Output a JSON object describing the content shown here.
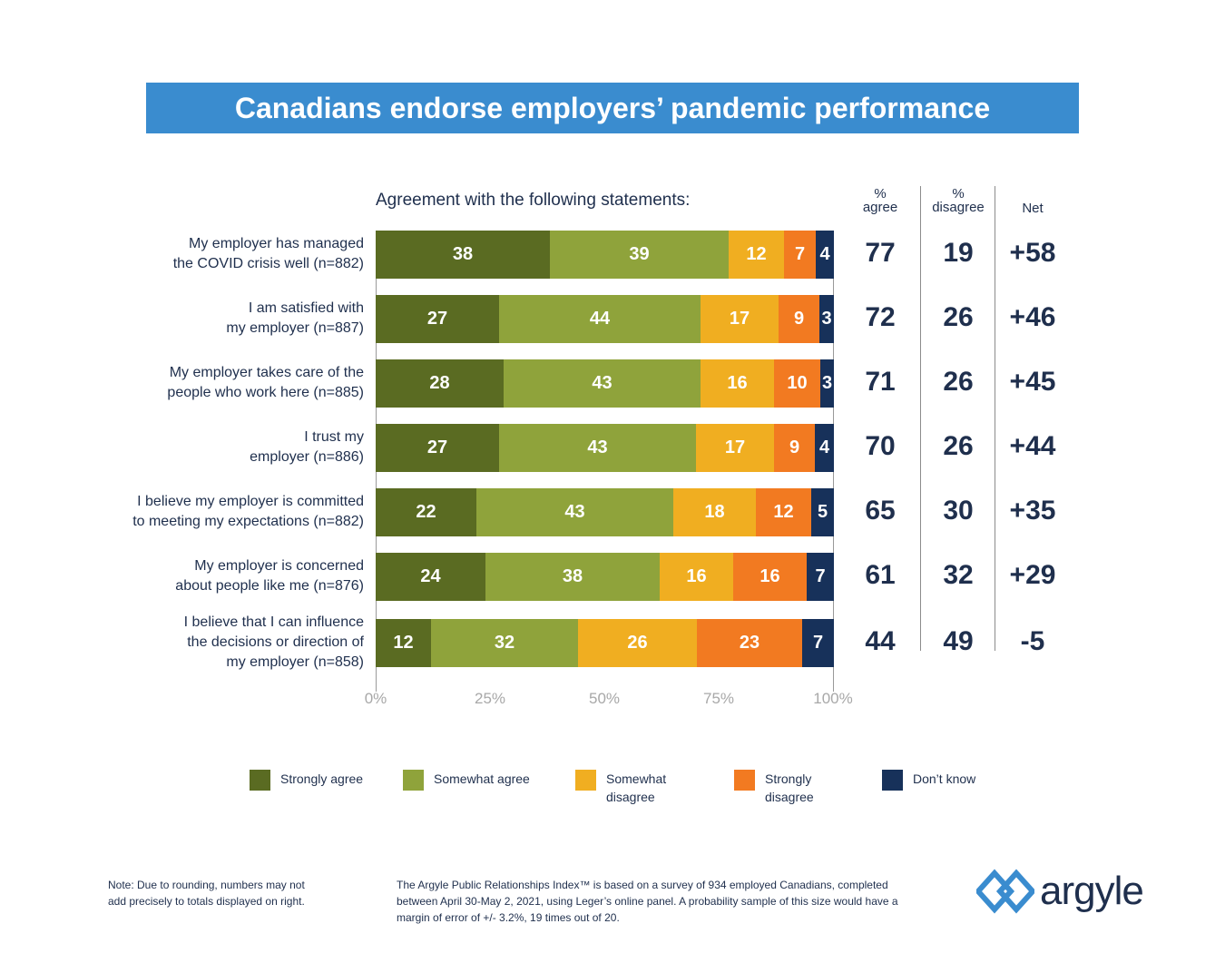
{
  "title": "Canadians endorse employers’ pandemic performance",
  "chart_data": {
    "type": "bar",
    "orientation": "horizontal-stacked",
    "subtitle": "Agreement with the following statements:",
    "categories": [
      "My employer has managed the COVID crisis well (n=882)",
      "I am satisfied with my employer (n=887)",
      "My employer takes care of the people who work here (n=885)",
      "I trust my employer (n=886)",
      "I believe my employer is committed to meeting my expectations (n=882)",
      "My employer is concerned about people like me (n=876)",
      "I believe that I can influence the decisions or direction of my employer (n=858)"
    ],
    "category_lines": [
      [
        "My employer has managed",
        "the COVID crisis well (n=882)"
      ],
      [
        "I am satisfied with",
        "my employer (n=887)"
      ],
      [
        "My employer takes care of the",
        "people who work here (n=885)"
      ],
      [
        "I trust my",
        "employer (n=886)"
      ],
      [
        "I believe my employer is committed",
        "to meeting my expectations (n=882)"
      ],
      [
        "My employer is concerned",
        "about people like me (n=876)"
      ],
      [
        "I believe that I can influence",
        "the decisions or direction of",
        "my employer (n=858)"
      ]
    ],
    "series": [
      {
        "name": "Strongly agree",
        "color": "#5a6b22",
        "values": [
          38,
          27,
          28,
          27,
          22,
          24,
          12
        ]
      },
      {
        "name": "Somewhat agree",
        "color": "#8fa33b",
        "values": [
          39,
          44,
          43,
          43,
          43,
          38,
          32
        ]
      },
      {
        "name": "Somewhat disagree",
        "color": "#f0ae21",
        "values": [
          12,
          17,
          16,
          17,
          18,
          16,
          26
        ]
      },
      {
        "name": "Strongly disagree",
        "color": "#f27a21",
        "values": [
          7,
          9,
          10,
          9,
          12,
          16,
          23
        ]
      },
      {
        "name": "Don’t know",
        "color": "#17315a",
        "values": [
          4,
          3,
          3,
          4,
          5,
          7,
          7
        ]
      }
    ],
    "legend_labels": [
      "Strongly agree",
      "Somewhat agree",
      "Somewhat\ndisagree",
      "Strongly\ndisagree",
      "Don’t know"
    ],
    "xlim": [
      0,
      100
    ],
    "xticks": [
      "0%",
      "25%",
      "50%",
      "75%",
      "100%"
    ],
    "summary_columns": {
      "headers": {
        "agree": [
          "%",
          "agree"
        ],
        "disagree": [
          "%",
          "disagree"
        ],
        "net": "Net"
      },
      "agree": [
        77,
        72,
        71,
        70,
        65,
        61,
        44
      ],
      "disagree": [
        19,
        26,
        26,
        26,
        30,
        32,
        49
      ],
      "net": [
        "+58",
        "+46",
        "+45",
        "+44",
        "+35",
        "+29",
        "-5"
      ]
    },
    "legend_position": "bottom",
    "grid": false
  },
  "notes": {
    "rounding": "Note: Due to rounding, numbers may not add precisely to totals displayed on right.",
    "methodology": "The Argyle Public Relationships Index™ is based on a survey of 934 employed Canadians, completed between  April 30-May 2, 2021, using Leger’s online panel. A probability sample of this size would have a margin of error of +/- 3.2%, 19 times out of 20."
  },
  "logo": {
    "text": "argyle",
    "icon": "argyle-diamond-icon",
    "colors": [
      "#3a8ccf",
      "#1f2f4d"
    ]
  }
}
